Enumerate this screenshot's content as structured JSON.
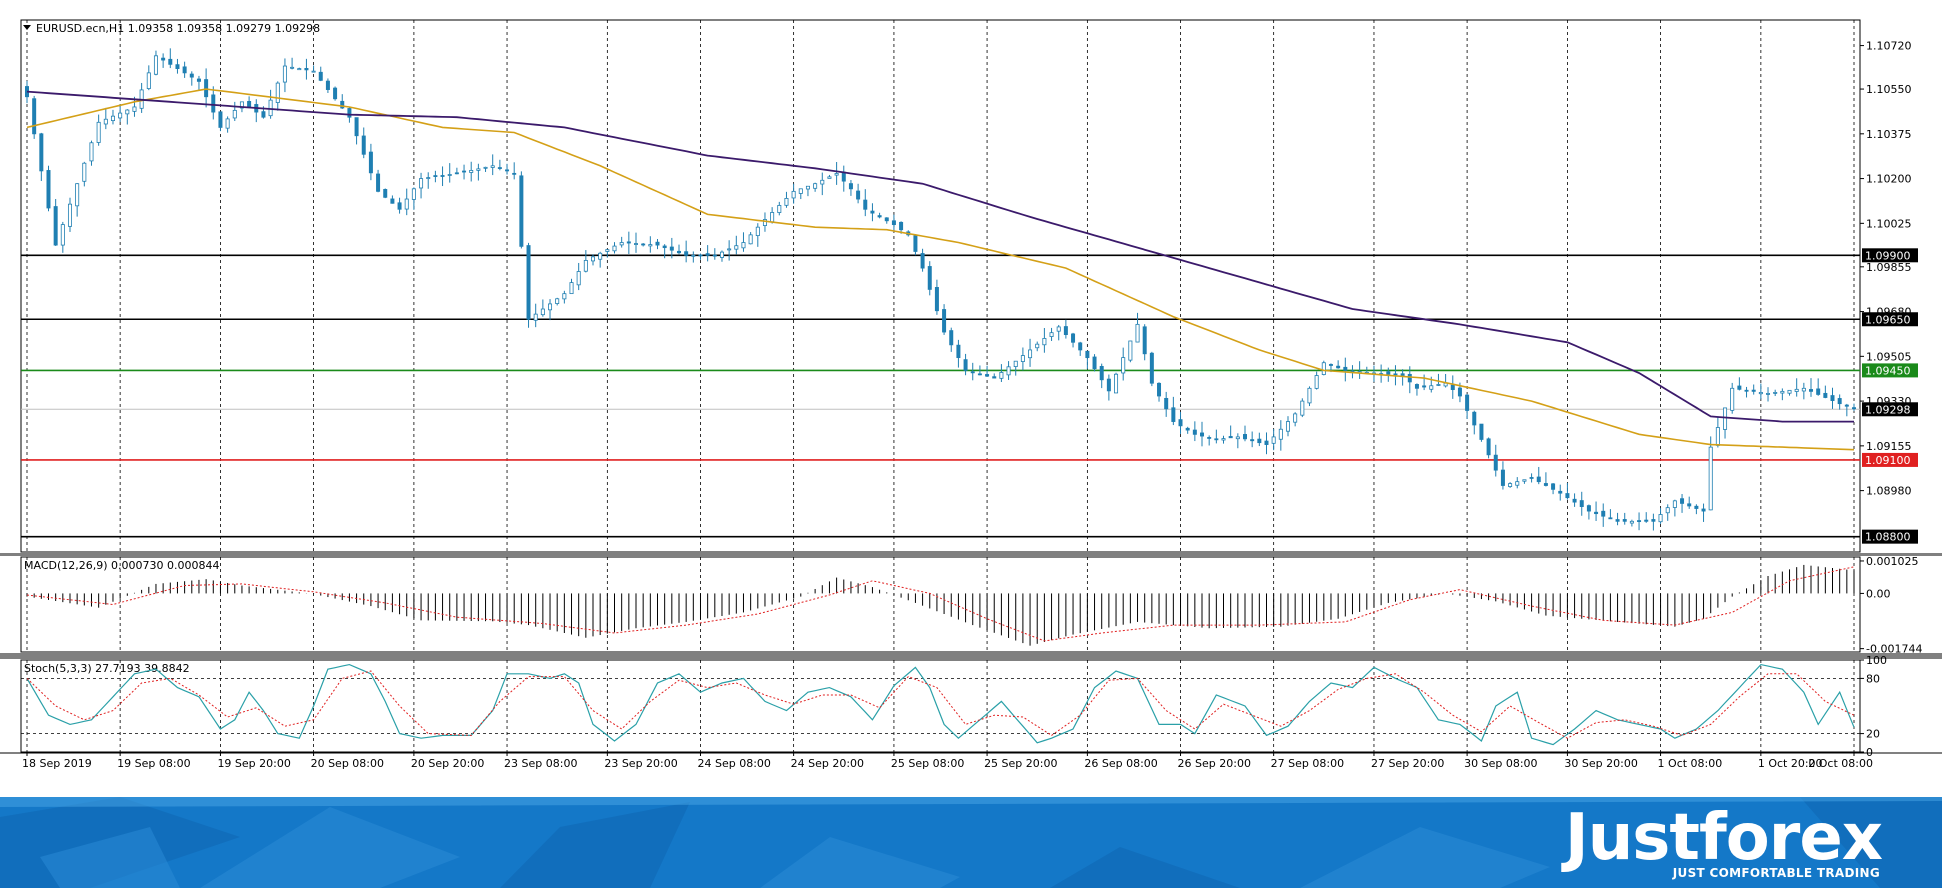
{
  "colors": {
    "bull_candle": "#1f7fb2",
    "bear_candle": "#1f7fb2",
    "ma_fast": "#d4a017",
    "ma_slow": "#3b1a6b",
    "support_red": "#e02020",
    "level_green": "#1a8a1a",
    "level_black": "#000000",
    "signal_line": "#e02020",
    "banner_blue": "#1478c8"
  },
  "header": {
    "symbol_info": "EURUSD.ecn,H1  1.09358 1.09358 1.09279 1.09298"
  },
  "chart_data": [
    {
      "type": "candlestick",
      "title": "EURUSD.ecn,H1  1.09358 1.09358 1.09279 1.09298",
      "ylim": [
        1.0874,
        1.1082
      ],
      "y_ticks": [
        "1.10720",
        "1.10550",
        "1.10375",
        "1.10200",
        "1.10025",
        "1.09855",
        "1.09680",
        "1.09505",
        "1.09330",
        "1.09155",
        "1.08980"
      ],
      "y_tick_values": [
        1.1072,
        1.1055,
        1.10375,
        1.102,
        1.10025,
        1.09855,
        1.0968,
        1.09505,
        1.0933,
        1.09155,
        1.0898
      ],
      "x_labels": [
        "18 Sep 2019",
        "19 Sep 08:00",
        "19 Sep 20:00",
        "20 Sep 08:00",
        "20 Sep 20:00",
        "23 Sep 08:00",
        "23 Sep 20:00",
        "24 Sep 08:00",
        "24 Sep 20:00",
        "25 Sep 08:00",
        "25 Sep 20:00",
        "26 Sep 08:00",
        "26 Sep 20:00",
        "27 Sep 08:00",
        "27 Sep 20:00",
        "30 Sep 08:00",
        "30 Sep 20:00",
        "1 Oct 08:00",
        "1 Oct 20:00",
        "2 Oct 08:00"
      ],
      "current_price": "1.09298",
      "current_price_value": 1.09298,
      "levels": [
        {
          "label": "1.09900",
          "value": 1.099,
          "color": "#000000"
        },
        {
          "label": "1.09650",
          "value": 1.0965,
          "color": "#000000"
        },
        {
          "label": "1.09450",
          "value": 1.0945,
          "color": "#1a8a1a"
        },
        {
          "label": "1.09100",
          "value": 1.091,
          "color": "#e02020"
        },
        {
          "label": "1.08800",
          "value": 1.088,
          "color": "#000000"
        }
      ],
      "price_keypoints": [
        [
          0,
          1.1052
        ],
        [
          4,
          1.0994
        ],
        [
          10,
          1.1042
        ],
        [
          15,
          1.1048
        ],
        [
          18,
          1.1068
        ],
        [
          24,
          1.1058
        ],
        [
          27,
          1.104
        ],
        [
          30,
          1.105
        ],
        [
          33,
          1.1044
        ],
        [
          36,
          1.1064
        ],
        [
          40,
          1.1062
        ],
        [
          45,
          1.1044
        ],
        [
          49,
          1.1015
        ],
        [
          52,
          1.1008
        ],
        [
          55,
          1.102
        ],
        [
          60,
          1.1022
        ],
        [
          65,
          1.1025
        ],
        [
          68,
          1.1022
        ],
        [
          70,
          1.0965
        ],
        [
          75,
          1.0975
        ],
        [
          78,
          1.0988
        ],
        [
          83,
          1.0995
        ],
        [
          88,
          1.0994
        ],
        [
          92,
          1.099
        ],
        [
          96,
          1.099
        ],
        [
          100,
          1.0995
        ],
        [
          103,
          1.1004
        ],
        [
          107,
          1.1015
        ],
        [
          110,
          1.1018
        ],
        [
          113,
          1.1022
        ],
        [
          115,
          1.1016
        ],
        [
          117,
          1.1008
        ],
        [
          121,
          1.1002
        ],
        [
          123,
          1.0998
        ],
        [
          125,
          1.0985
        ],
        [
          128,
          1.096
        ],
        [
          131,
          1.0945
        ],
        [
          135,
          1.0942
        ],
        [
          140,
          1.0953
        ],
        [
          144,
          1.0962
        ],
        [
          148,
          1.095
        ],
        [
          151,
          1.0937
        ],
        [
          153,
          1.095
        ],
        [
          155,
          1.0963
        ],
        [
          157,
          1.094
        ],
        [
          160,
          1.0925
        ],
        [
          163,
          1.092
        ],
        [
          166,
          1.0918
        ],
        [
          169,
          1.0919
        ],
        [
          173,
          1.0916
        ],
        [
          177,
          1.0928
        ],
        [
          181,
          1.0948
        ],
        [
          184,
          1.0945
        ],
        [
          188,
          1.0944
        ],
        [
          192,
          1.0943
        ],
        [
          194,
          1.0938
        ],
        [
          198,
          1.094
        ],
        [
          200,
          1.0935
        ],
        [
          203,
          1.0918
        ],
        [
          206,
          1.09
        ],
        [
          210,
          1.0903
        ],
        [
          214,
          1.0897
        ],
        [
          218,
          1.089
        ],
        [
          222,
          1.0886
        ],
        [
          227,
          1.0886
        ],
        [
          230,
          1.0894
        ],
        [
          234,
          1.089
        ],
        [
          235,
          1.0915
        ],
        [
          238,
          1.0938
        ],
        [
          243,
          1.0936
        ],
        [
          248,
          1.0938
        ],
        [
          253,
          1.0932
        ],
        [
          255,
          1.093
        ]
      ],
      "ma_fast_keypoints": [
        [
          0,
          1.104
        ],
        [
          15,
          1.105
        ],
        [
          25,
          1.1055
        ],
        [
          45,
          1.1048
        ],
        [
          58,
          1.104
        ],
        [
          68,
          1.1038
        ],
        [
          80,
          1.1025
        ],
        [
          95,
          1.1006
        ],
        [
          110,
          1.1001
        ],
        [
          120,
          1.1
        ],
        [
          130,
          1.0995
        ],
        [
          145,
          1.0985
        ],
        [
          160,
          1.0966
        ],
        [
          172,
          1.0953
        ],
        [
          181,
          1.0945
        ],
        [
          195,
          1.0942
        ],
        [
          210,
          1.0933
        ],
        [
          225,
          1.092
        ],
        [
          235,
          1.0916
        ],
        [
          255,
          1.0914
        ]
      ],
      "ma_slow_keypoints": [
        [
          0,
          1.1054
        ],
        [
          20,
          1.105
        ],
        [
          45,
          1.1045
        ],
        [
          60,
          1.1044
        ],
        [
          75,
          1.104
        ],
        [
          95,
          1.1029
        ],
        [
          110,
          1.1024
        ],
        [
          125,
          1.1018
        ],
        [
          140,
          1.1005
        ],
        [
          155,
          1.0993
        ],
        [
          170,
          1.0981
        ],
        [
          185,
          1.0969
        ],
        [
          200,
          1.0963
        ],
        [
          215,
          1.0956
        ],
        [
          225,
          1.0944
        ],
        [
          235,
          1.0927
        ],
        [
          245,
          1.0925
        ],
        [
          255,
          1.0925
        ]
      ]
    },
    {
      "type": "histogram",
      "title": "MACD(12,26,9) 0.000730 0.000844",
      "ylim": [
        -0.00185,
        0.00115
      ],
      "y_ticks": [
        "0.001025",
        "0.00",
        "-0.001744"
      ],
      "y_tick_values": [
        0.001025,
        0.0,
        -0.001744
      ],
      "macd_keypoints": [
        [
          0,
          -0.0001
        ],
        [
          10,
          -0.00045
        ],
        [
          18,
          0.0003
        ],
        [
          25,
          0.00045
        ],
        [
          30,
          0.00025
        ],
        [
          40,
          -2e-05
        ],
        [
          48,
          -0.0004
        ],
        [
          55,
          -0.00085
        ],
        [
          65,
          -0.00088
        ],
        [
          70,
          -0.001
        ],
        [
          78,
          -0.0014
        ],
        [
          85,
          -0.0011
        ],
        [
          92,
          -0.0009
        ],
        [
          100,
          -0.0006
        ],
        [
          108,
          -0.0001
        ],
        [
          113,
          0.0005
        ],
        [
          118,
          0.0002
        ],
        [
          124,
          -0.0003
        ],
        [
          132,
          -0.001
        ],
        [
          140,
          -0.00165
        ],
        [
          146,
          -0.0013
        ],
        [
          155,
          -0.0009
        ],
        [
          165,
          -0.0011
        ],
        [
          175,
          -0.00105
        ],
        [
          183,
          -0.0008
        ],
        [
          190,
          -0.0003
        ],
        [
          198,
          0.0
        ],
        [
          205,
          -0.00025
        ],
        [
          212,
          -0.0007
        ],
        [
          222,
          -0.0009
        ],
        [
          230,
          -0.00105
        ],
        [
          234,
          -0.0008
        ],
        [
          238,
          -0.0001
        ],
        [
          243,
          0.00055
        ],
        [
          248,
          0.0009
        ],
        [
          255,
          0.00073
        ]
      ],
      "signal_keypoints": [
        [
          0,
          -5e-05
        ],
        [
          12,
          -0.00035
        ],
        [
          22,
          0.00025
        ],
        [
          30,
          0.0003
        ],
        [
          40,
          5e-05
        ],
        [
          50,
          -0.0003
        ],
        [
          60,
          -0.00075
        ],
        [
          72,
          -0.00095
        ],
        [
          82,
          -0.00125
        ],
        [
          92,
          -0.001
        ],
        [
          102,
          -0.00065
        ],
        [
          112,
          -5e-05
        ],
        [
          118,
          0.0004
        ],
        [
          126,
          0.0
        ],
        [
          134,
          -0.0008
        ],
        [
          142,
          -0.0015
        ],
        [
          150,
          -0.00125
        ],
        [
          160,
          -0.001
        ],
        [
          172,
          -0.001
        ],
        [
          184,
          -0.0009
        ],
        [
          193,
          -0.0002
        ],
        [
          200,
          0.00012
        ],
        [
          210,
          -0.0004
        ],
        [
          220,
          -0.00085
        ],
        [
          230,
          -0.001
        ],
        [
          238,
          -0.0006
        ],
        [
          246,
          0.0004
        ],
        [
          255,
          0.00084
        ]
      ]
    },
    {
      "type": "line",
      "title": "Stoch(5,3,3) 27.7193 39.8842",
      "ylim": [
        0,
        100
      ],
      "y_ticks": [
        "100",
        "80",
        "20",
        "0"
      ],
      "y_tick_values": [
        100,
        80,
        20,
        0
      ],
      "main_keypoints": [
        [
          0,
          80
        ],
        [
          3,
          40
        ],
        [
          6,
          30
        ],
        [
          9,
          35
        ],
        [
          12,
          60
        ],
        [
          15,
          85
        ],
        [
          18,
          90
        ],
        [
          21,
          70
        ],
        [
          24,
          60
        ],
        [
          27,
          25
        ],
        [
          29,
          35
        ],
        [
          31,
          65
        ],
        [
          33,
          45
        ],
        [
          35,
          20
        ],
        [
          38,
          15
        ],
        [
          40,
          50
        ],
        [
          42,
          90
        ],
        [
          45,
          95
        ],
        [
          48,
          85
        ],
        [
          50,
          55
        ],
        [
          52,
          20
        ],
        [
          55,
          15
        ],
        [
          58,
          18
        ],
        [
          62,
          18
        ],
        [
          65,
          45
        ],
        [
          67,
          85
        ],
        [
          70,
          85
        ],
        [
          73,
          80
        ],
        [
          75,
          85
        ],
        [
          77,
          75
        ],
        [
          79,
          30
        ],
        [
          82,
          12
        ],
        [
          85,
          30
        ],
        [
          88,
          75
        ],
        [
          91,
          85
        ],
        [
          94,
          65
        ],
        [
          97,
          75
        ],
        [
          100,
          80
        ],
        [
          103,
          55
        ],
        [
          106,
          45
        ],
        [
          109,
          65
        ],
        [
          112,
          70
        ],
        [
          115,
          60
        ],
        [
          118,
          35
        ],
        [
          121,
          72
        ],
        [
          124,
          92
        ],
        [
          126,
          70
        ],
        [
          128,
          30
        ],
        [
          130,
          15
        ],
        [
          133,
          35
        ],
        [
          136,
          55
        ],
        [
          139,
          28
        ],
        [
          141,
          10
        ],
        [
          143,
          15
        ],
        [
          146,
          25
        ],
        [
          149,
          70
        ],
        [
          152,
          88
        ],
        [
          155,
          80
        ],
        [
          158,
          30
        ],
        [
          161,
          30
        ],
        [
          163,
          20
        ],
        [
          166,
          62
        ],
        [
          170,
          50
        ],
        [
          173,
          18
        ],
        [
          176,
          28
        ],
        [
          179,
          55
        ],
        [
          182,
          75
        ],
        [
          185,
          70
        ],
        [
          188,
          92
        ],
        [
          191,
          80
        ],
        [
          194,
          70
        ],
        [
          197,
          35
        ],
        [
          200,
          30
        ],
        [
          203,
          12
        ],
        [
          205,
          50
        ],
        [
          208,
          65
        ],
        [
          210,
          15
        ],
        [
          213,
          8
        ],
        [
          216,
          25
        ],
        [
          219,
          45
        ],
        [
          222,
          35
        ],
        [
          225,
          30
        ],
        [
          228,
          25
        ],
        [
          230,
          15
        ],
        [
          233,
          25
        ],
        [
          236,
          45
        ],
        [
          239,
          70
        ],
        [
          242,
          95
        ],
        [
          245,
          90
        ],
        [
          248,
          65
        ],
        [
          250,
          30
        ],
        [
          253,
          65
        ],
        [
          255,
          27
        ]
      ],
      "signal_keypoints": [
        [
          0,
          80
        ],
        [
          4,
          50
        ],
        [
          8,
          35
        ],
        [
          12,
          45
        ],
        [
          16,
          75
        ],
        [
          20,
          80
        ],
        [
          24,
          62
        ],
        [
          28,
          38
        ],
        [
          32,
          48
        ],
        [
          36,
          28
        ],
        [
          40,
          35
        ],
        [
          44,
          80
        ],
        [
          48,
          88
        ],
        [
          52,
          50
        ],
        [
          56,
          20
        ],
        [
          62,
          18
        ],
        [
          66,
          55
        ],
        [
          70,
          82
        ],
        [
          75,
          82
        ],
        [
          79,
          45
        ],
        [
          83,
          25
        ],
        [
          87,
          55
        ],
        [
          91,
          78
        ],
        [
          95,
          70
        ],
        [
          99,
          75
        ],
        [
          103,
          62
        ],
        [
          107,
          52
        ],
        [
          111,
          62
        ],
        [
          115,
          62
        ],
        [
          119,
          48
        ],
        [
          123,
          82
        ],
        [
          127,
          70
        ],
        [
          131,
          30
        ],
        [
          135,
          40
        ],
        [
          139,
          38
        ],
        [
          143,
          18
        ],
        [
          147,
          40
        ],
        [
          151,
          78
        ],
        [
          155,
          80
        ],
        [
          159,
          45
        ],
        [
          163,
          25
        ],
        [
          167,
          52
        ],
        [
          171,
          40
        ],
        [
          175,
          28
        ],
        [
          179,
          45
        ],
        [
          183,
          68
        ],
        [
          187,
          80
        ],
        [
          191,
          85
        ],
        [
          195,
          65
        ],
        [
          199,
          40
        ],
        [
          203,
          22
        ],
        [
          207,
          50
        ],
        [
          211,
          32
        ],
        [
          215,
          15
        ],
        [
          219,
          32
        ],
        [
          223,
          35
        ],
        [
          227,
          28
        ],
        [
          231,
          18
        ],
        [
          235,
          30
        ],
        [
          239,
          60
        ],
        [
          243,
          85
        ],
        [
          247,
          85
        ],
        [
          251,
          55
        ],
        [
          255,
          40
        ]
      ]
    }
  ],
  "brand": {
    "logo_text": "Justforex",
    "tagline": "JUST COMFORTABLE TRADING"
  }
}
